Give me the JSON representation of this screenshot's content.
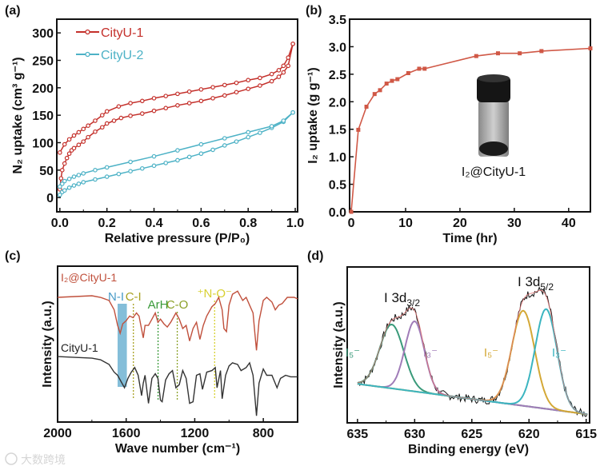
{
  "panel_labels": [
    "(a)",
    "(b)",
    "(c)",
    "(d)"
  ],
  "watermark": "大数跨境",
  "chart_data": [
    {
      "panel": "(a)",
      "type": "scatter",
      "xlabel": "Relative pressure (P/P₀)",
      "ylabel": "N₂ uptake (cm³ g⁻¹)",
      "xlim": [
        -0.013,
        1.01
      ],
      "ylim": [
        -26,
        325
      ],
      "xticks": [
        "0.0",
        "0.2",
        "0.4",
        "0.6",
        "0.8",
        "1.0"
      ],
      "yticks": [
        "0",
        "50",
        "100",
        "150",
        "200",
        "250",
        "300"
      ],
      "legend": "top-left",
      "series": [
        {
          "name": "CityU-1",
          "color": "#c4302b",
          "branch": "adsorption",
          "x": [
            0,
            0.005,
            0.01,
            0.02,
            0.03,
            0.04,
            0.05,
            0.06,
            0.08,
            0.1,
            0.12,
            0.15,
            0.18,
            0.2,
            0.23,
            0.26,
            0.3,
            0.35,
            0.4,
            0.45,
            0.5,
            0.55,
            0.6,
            0.65,
            0.7,
            0.75,
            0.8,
            0.85,
            0.9,
            0.93,
            0.95,
            0.97,
            0.99
          ],
          "y": [
            15,
            35,
            50,
            62,
            72,
            80,
            86,
            90,
            96,
            102,
            110,
            120,
            128,
            135,
            140,
            145,
            149,
            153,
            158,
            163,
            168,
            172,
            176,
            181,
            186,
            192,
            198,
            204,
            212,
            220,
            228,
            240,
            280
          ]
        },
        {
          "name": "CityU-1",
          "color": "#c4302b",
          "branch": "desorption",
          "x": [
            0,
            0.02,
            0.04,
            0.06,
            0.08,
            0.1,
            0.12,
            0.15,
            0.18,
            0.2,
            0.25,
            0.3,
            0.35,
            0.4,
            0.45,
            0.5,
            0.55,
            0.6,
            0.65,
            0.7,
            0.75,
            0.8,
            0.85,
            0.9,
            0.93,
            0.95,
            0.97,
            0.99
          ],
          "y": [
            82,
            97,
            106,
            113,
            119,
            125,
            131,
            140,
            150,
            157,
            166,
            172,
            176,
            181,
            185,
            189,
            193,
            197,
            201,
            205,
            209,
            214,
            218,
            225,
            232,
            240,
            255,
            280
          ]
        },
        {
          "name": "CityU-2",
          "color": "#4db2c6",
          "branch": "adsorption",
          "x": [
            0,
            0.01,
            0.02,
            0.04,
            0.06,
            0.08,
            0.1,
            0.15,
            0.2,
            0.25,
            0.3,
            0.35,
            0.4,
            0.45,
            0.5,
            0.55,
            0.6,
            0.65,
            0.7,
            0.75,
            0.8,
            0.85,
            0.9,
            0.95,
            0.99
          ],
          "y": [
            5,
            10,
            13,
            18,
            22,
            25,
            28,
            33,
            38,
            43,
            48,
            53,
            58,
            63,
            68,
            74,
            80,
            87,
            95,
            102,
            110,
            118,
            127,
            138,
            155
          ]
        },
        {
          "name": "CityU-2",
          "color": "#4db2c6",
          "branch": "desorption",
          "x": [
            0,
            0.01,
            0.02,
            0.04,
            0.06,
            0.08,
            0.1,
            0.15,
            0.2,
            0.3,
            0.4,
            0.5,
            0.6,
            0.7,
            0.8,
            0.9,
            0.95,
            0.99
          ],
          "y": [
            20,
            25,
            30,
            34,
            38,
            41,
            44,
            50,
            55,
            65,
            75,
            86,
            97,
            108,
            119,
            130,
            140,
            155
          ]
        }
      ],
      "legend_entries": [
        "CityU-1",
        "CityU-2"
      ]
    },
    {
      "panel": "(b)",
      "type": "line",
      "xlabel": "Time (hr)",
      "ylabel": "I₂ uptake (g  g⁻¹)",
      "xlim": [
        -0.3,
        44
      ],
      "ylim": [
        0,
        3.5
      ],
      "xticks": [
        "0",
        "10",
        "20",
        "30",
        "40"
      ],
      "yticks": [
        "0.0",
        "0.5",
        "1.0",
        "1.5",
        "2.0",
        "2.5",
        "3.0",
        "3.5"
      ],
      "series": [
        {
          "name": "I₂@CityU-1",
          "color": "#d05846",
          "x": [
            0,
            1.3,
            2.8,
            4.3,
            5.3,
            6.5,
            7.5,
            8.5,
            10.5,
            12.5,
            13.5,
            23,
            27,
            31,
            35,
            44
          ],
          "y": [
            0,
            1.49,
            1.91,
            2.14,
            2.21,
            2.33,
            2.38,
            2.41,
            2.52,
            2.6,
            2.6,
            2.83,
            2.88,
            2.88,
            2.92,
            2.97
          ]
        }
      ],
      "inset_label": "I₂@CityU-1"
    },
    {
      "panel": "(c)",
      "type": "line",
      "xlabel": "Wave number (cm⁻¹)",
      "ylabel": "Intensity (a.u.)",
      "xlim": [
        2000,
        600
      ],
      "ylim": [
        0,
        100
      ],
      "xticks": [
        "2000",
        "1600",
        "1200",
        "800"
      ],
      "series": [
        {
          "name": "I₂@CityU-1",
          "color": "#c0503c",
          "points": [
            [
              2000,
              80
            ],
            [
              1900,
              80.5
            ],
            [
              1800,
              81
            ],
            [
              1750,
              80
            ],
            [
              1700,
              78
            ],
            [
              1670,
              72
            ],
            [
              1650,
              62
            ],
            [
              1635,
              57
            ],
            [
              1620,
              63
            ],
            [
              1600,
              65
            ],
            [
              1580,
              68
            ],
            [
              1560,
              67
            ],
            [
              1540,
              70
            ],
            [
              1525,
              68
            ],
            [
              1500,
              54
            ],
            [
              1490,
              62
            ],
            [
              1470,
              62
            ],
            [
              1450,
              66
            ],
            [
              1430,
              70
            ],
            [
              1415,
              64
            ],
            [
              1400,
              66
            ],
            [
              1380,
              63
            ],
            [
              1360,
              61
            ],
            [
              1340,
              64
            ],
            [
              1310,
              70
            ],
            [
              1290,
              66
            ],
            [
              1270,
              60
            ],
            [
              1250,
              62
            ],
            [
              1230,
              52
            ],
            [
              1210,
              60
            ],
            [
              1190,
              64
            ],
            [
              1170,
              53
            ],
            [
              1150,
              62
            ],
            [
              1130,
              68
            ],
            [
              1100,
              74
            ],
            [
              1080,
              76
            ],
            [
              1060,
              80
            ],
            [
              1040,
              72
            ],
            [
              1030,
              60
            ],
            [
              1015,
              58
            ],
            [
              1000,
              75
            ],
            [
              980,
              82
            ],
            [
              950,
              84
            ],
            [
              920,
              78
            ],
            [
              900,
              80
            ],
            [
              880,
              75
            ],
            [
              860,
              70
            ],
            [
              850,
              58
            ],
            [
              840,
              46
            ],
            [
              825,
              65
            ],
            [
              800,
              78
            ],
            [
              780,
              80
            ],
            [
              750,
              77
            ],
            [
              730,
              72
            ],
            [
              710,
              75
            ],
            [
              690,
              76
            ],
            [
              660,
              80
            ],
            [
              620,
              80
            ],
            [
              600,
              79
            ]
          ]
        },
        {
          "name": "CityU-1",
          "color": "#333333",
          "points": [
            [
              2000,
              42
            ],
            [
              1800,
              41
            ],
            [
              1750,
              40
            ],
            [
              1700,
              37
            ],
            [
              1670,
              32
            ],
            [
              1650,
              30
            ],
            [
              1630,
              26
            ],
            [
              1610,
              22
            ],
            [
              1590,
              28
            ],
            [
              1570,
              32
            ],
            [
              1550,
              35
            ],
            [
              1530,
              30
            ],
            [
              1510,
              17
            ],
            [
              1500,
              25
            ],
            [
              1490,
              30
            ],
            [
              1470,
              12
            ],
            [
              1450,
              28
            ],
            [
              1430,
              31
            ],
            [
              1415,
              28
            ],
            [
              1400,
              14
            ],
            [
              1390,
              13
            ],
            [
              1370,
              27
            ],
            [
              1350,
              31
            ],
            [
              1330,
              33
            ],
            [
              1310,
              22
            ],
            [
              1290,
              24
            ],
            [
              1270,
              33
            ],
            [
              1250,
              28
            ],
            [
              1230,
              12
            ],
            [
              1210,
              13
            ],
            [
              1190,
              30
            ],
            [
              1170,
              31
            ],
            [
              1155,
              21
            ],
            [
              1130,
              32
            ],
            [
              1100,
              33
            ],
            [
              1080,
              35
            ],
            [
              1070,
              22
            ],
            [
              1050,
              33
            ],
            [
              1040,
              15
            ],
            [
              1020,
              30
            ],
            [
              1000,
              36
            ],
            [
              980,
              38
            ],
            [
              950,
              37
            ],
            [
              930,
              33
            ],
            [
              900,
              35
            ],
            [
              880,
              38
            ],
            [
              860,
              30
            ],
            [
              840,
              4
            ],
            [
              825,
              25
            ],
            [
              800,
              34
            ],
            [
              780,
              30
            ],
            [
              750,
              30
            ],
            [
              720,
              22
            ],
            [
              700,
              28
            ],
            [
              670,
              30
            ],
            [
              640,
              29
            ],
            [
              600,
              29
            ]
          ]
        }
      ],
      "band": {
        "label": "N-I",
        "from": 1650,
        "to": 1596,
        "color": "#6fb3d2"
      },
      "markers": [
        {
          "label": "C-I",
          "x": 1558,
          "color": "#a8a020"
        },
        {
          "label": "ArH",
          "x": 1414,
          "color": "#3a9a3a"
        },
        {
          "label": "C-O",
          "x": 1302,
          "color": "#8aa028"
        },
        {
          "label": "⁺N-O⁻",
          "x": 1084,
          "color": "#d8d030"
        }
      ],
      "series_labels": [
        "I₂@CityU-1",
        "CityU-1"
      ]
    },
    {
      "panel": "(d)",
      "type": "line",
      "xlabel": "Binding energy (eV)",
      "ylabel": "Intensity (a.u.)",
      "xlim": [
        635.9,
        614.7
      ],
      "ylim": [
        0,
        100
      ],
      "xticks": [
        "635",
        "630",
        "625",
        "620",
        "615"
      ],
      "background": {
        "at_635": 25,
        "at_615": 5.6,
        "color": "#d4a836"
      },
      "components": [
        {
          "label": "I₅⁻",
          "center": 632.0,
          "height": 41,
          "sigma": 1.05,
          "color": "#3a9a7a"
        },
        {
          "label": "I₃⁻",
          "center": 630.0,
          "height": 45,
          "sigma": 0.85,
          "color": "#a07cb8"
        },
        {
          "label": "I₅⁻",
          "center": 620.5,
          "height": 61,
          "sigma": 1.0,
          "color": "#d4a836"
        },
        {
          "label": "I₃⁻",
          "center": 618.5,
          "height": 64,
          "sigma": 0.95,
          "color": "#3bb5c0"
        }
      ],
      "envelope_color": "#e07070",
      "data_color": "#111111",
      "peak_labels": [
        {
          "main": "I 3d",
          "sub": "3/2"
        },
        {
          "main": "I 3d",
          "sub": "5/2"
        }
      ]
    }
  ]
}
